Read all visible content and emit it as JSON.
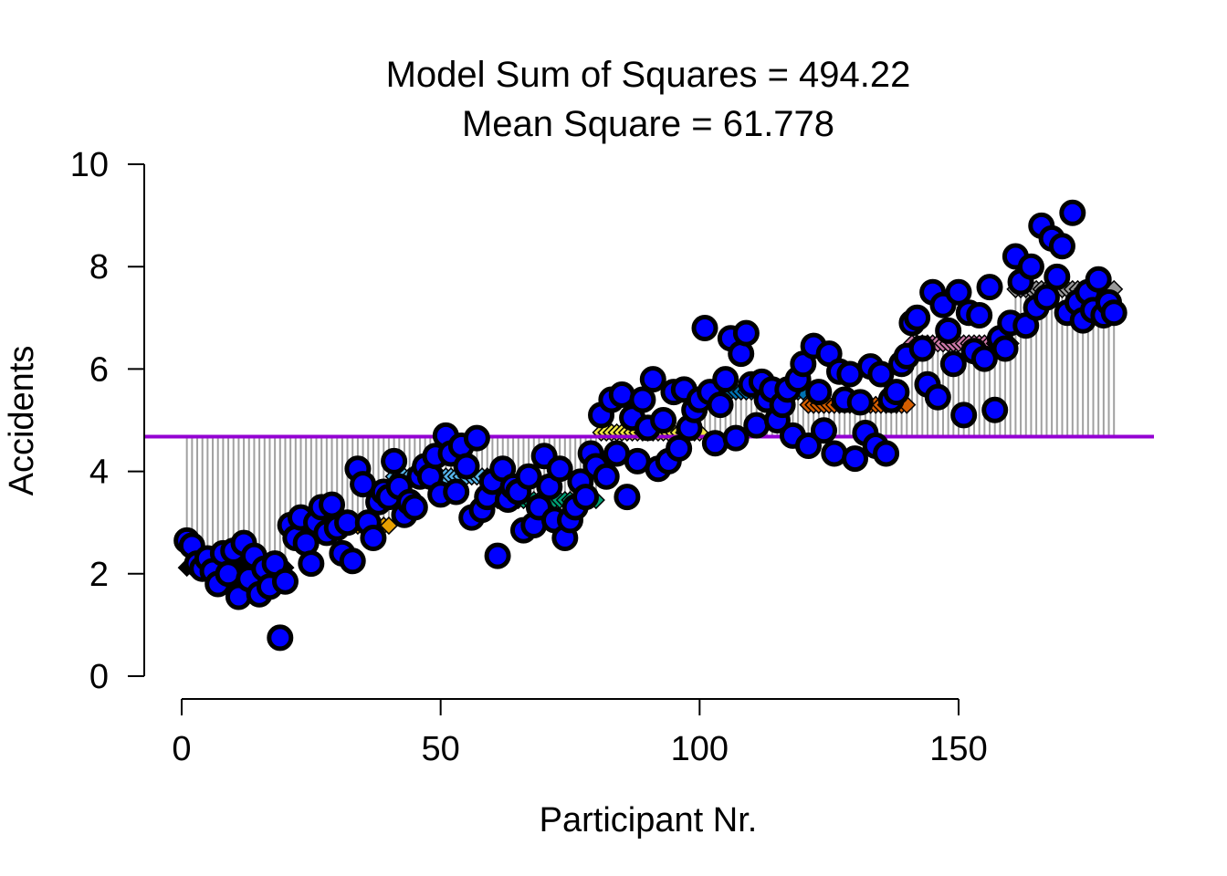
{
  "chart_data": {
    "type": "scatter",
    "title": "Model Sum of Squares = 494.22",
    "subtitle": "Mean Square = 61.778",
    "xlabel": "Participant Nr.",
    "ylabel": "Accidents",
    "xlim": [
      -7,
      188
    ],
    "ylim": [
      0,
      10
    ],
    "x_ticks": [
      0,
      50,
      100,
      150
    ],
    "y_ticks": [
      0,
      2,
      4,
      6,
      8,
      10
    ],
    "grid": false,
    "legend": "none",
    "grand_mean": 4.68,
    "colors": {
      "points_fill": "#0000ff",
      "points_edge": "#000000",
      "grand_mean_line": "#9400d3",
      "residual_lines": "#a0a0a0"
    },
    "groups": [
      {
        "x_start": 1,
        "x_end": 20,
        "mean": 2.12,
        "color": "#000000"
      },
      {
        "x_start": 21,
        "x_end": 40,
        "mean": 2.94,
        "color": "#e69f00"
      },
      {
        "x_start": 41,
        "x_end": 60,
        "mean": 3.9,
        "color": "#56b4e9"
      },
      {
        "x_start": 61,
        "x_end": 80,
        "mean": 3.44,
        "color": "#009e73"
      },
      {
        "x_start": 81,
        "x_end": 100,
        "mean": 4.76,
        "color": "#f0e442"
      },
      {
        "x_start": 101,
        "x_end": 120,
        "mean": 5.56,
        "color": "#0072b2"
      },
      {
        "x_start": 121,
        "x_end": 140,
        "mean": 5.3,
        "color": "#d55e00"
      },
      {
        "x_start": 141,
        "x_end": 160,
        "mean": 6.5,
        "color": "#cc79a7"
      },
      {
        "x_start": 161,
        "x_end": 180,
        "mean": 7.56,
        "color": "#999999"
      }
    ],
    "points": [
      [
        1,
        2.65
      ],
      [
        2,
        2.55
      ],
      [
        3,
        2.2
      ],
      [
        4,
        2.1
      ],
      [
        5,
        2.3
      ],
      [
        6,
        2.05
      ],
      [
        7,
        1.8
      ],
      [
        8,
        2.4
      ],
      [
        9,
        2.0
      ],
      [
        10,
        2.45
      ],
      [
        11,
        1.55
      ],
      [
        12,
        2.6
      ],
      [
        13,
        1.9
      ],
      [
        14,
        2.35
      ],
      [
        15,
        1.6
      ],
      [
        16,
        2.1
      ],
      [
        17,
        1.75
      ],
      [
        18,
        2.2
      ],
      [
        19,
        0.75
      ],
      [
        20,
        1.85
      ],
      [
        21,
        2.95
      ],
      [
        22,
        2.7
      ],
      [
        23,
        3.1
      ],
      [
        24,
        2.6
      ],
      [
        25,
        2.2
      ],
      [
        26,
        3.0
      ],
      [
        27,
        3.3
      ],
      [
        28,
        2.8
      ],
      [
        29,
        3.35
      ],
      [
        30,
        2.9
      ],
      [
        31,
        2.4
      ],
      [
        32,
        3.0
      ],
      [
        33,
        2.25
      ],
      [
        34,
        4.05
      ],
      [
        35,
        3.75
      ],
      [
        36,
        3.0
      ],
      [
        37,
        2.7
      ],
      [
        38,
        3.4
      ],
      [
        39,
        3.6
      ],
      [
        40,
        3.5
      ],
      [
        41,
        4.2
      ],
      [
        42,
        3.7
      ],
      [
        43,
        3.15
      ],
      [
        44,
        3.4
      ],
      [
        45,
        3.3
      ],
      [
        46,
        3.9
      ],
      [
        47,
        4.1
      ],
      [
        48,
        3.9
      ],
      [
        49,
        4.3
      ],
      [
        50,
        3.55
      ],
      [
        51,
        4.7
      ],
      [
        52,
        4.35
      ],
      [
        53,
        3.6
      ],
      [
        54,
        4.5
      ],
      [
        55,
        4.1
      ],
      [
        56,
        3.1
      ],
      [
        57,
        4.65
      ],
      [
        58,
        3.25
      ],
      [
        59,
        3.5
      ],
      [
        60,
        3.8
      ],
      [
        61,
        2.35
      ],
      [
        62,
        4.05
      ],
      [
        63,
        3.45
      ],
      [
        64,
        3.7
      ],
      [
        65,
        3.6
      ],
      [
        66,
        2.85
      ],
      [
        67,
        3.9
      ],
      [
        68,
        2.95
      ],
      [
        69,
        3.3
      ],
      [
        70,
        4.3
      ],
      [
        71,
        3.7
      ],
      [
        72,
        3.05
      ],
      [
        73,
        4.05
      ],
      [
        74,
        2.7
      ],
      [
        75,
        3.05
      ],
      [
        76,
        3.3
      ],
      [
        77,
        3.8
      ],
      [
        78,
        3.5
      ],
      [
        79,
        4.35
      ],
      [
        80,
        4.1
      ],
      [
        81,
        5.1
      ],
      [
        82,
        3.9
      ],
      [
        83,
        5.4
      ],
      [
        84,
        4.35
      ],
      [
        85,
        5.5
      ],
      [
        86,
        3.5
      ],
      [
        87,
        5.05
      ],
      [
        88,
        4.2
      ],
      [
        89,
        5.4
      ],
      [
        90,
        4.85
      ],
      [
        91,
        5.8
      ],
      [
        92,
        4.05
      ],
      [
        93,
        5.0
      ],
      [
        94,
        4.2
      ],
      [
        95,
        5.55
      ],
      [
        96,
        4.45
      ],
      [
        97,
        5.6
      ],
      [
        98,
        4.85
      ],
      [
        99,
        5.2
      ],
      [
        100,
        5.4
      ],
      [
        101,
        6.8
      ],
      [
        102,
        5.55
      ],
      [
        103,
        4.55
      ],
      [
        104,
        5.3
      ],
      [
        105,
        5.8
      ],
      [
        106,
        6.6
      ],
      [
        107,
        4.65
      ],
      [
        108,
        6.3
      ],
      [
        109,
        6.7
      ],
      [
        110,
        5.7
      ],
      [
        111,
        4.9
      ],
      [
        112,
        5.75
      ],
      [
        113,
        5.4
      ],
      [
        114,
        5.6
      ],
      [
        115,
        5.0
      ],
      [
        116,
        5.3
      ],
      [
        117,
        5.6
      ],
      [
        118,
        4.7
      ],
      [
        119,
        5.8
      ],
      [
        120,
        6.1
      ],
      [
        121,
        4.5
      ],
      [
        122,
        6.45
      ],
      [
        123,
        5.55
      ],
      [
        124,
        4.8
      ],
      [
        125,
        6.3
      ],
      [
        126,
        4.35
      ],
      [
        127,
        5.95
      ],
      [
        128,
        5.4
      ],
      [
        129,
        5.9
      ],
      [
        130,
        4.25
      ],
      [
        131,
        5.35
      ],
      [
        132,
        4.75
      ],
      [
        133,
        6.05
      ],
      [
        134,
        4.5
      ],
      [
        135,
        5.9
      ],
      [
        136,
        4.35
      ],
      [
        137,
        5.4
      ],
      [
        138,
        5.55
      ],
      [
        139,
        6.1
      ],
      [
        140,
        6.25
      ],
      [
        141,
        6.9
      ],
      [
        142,
        7.0
      ],
      [
        143,
        6.4
      ],
      [
        144,
        5.7
      ],
      [
        145,
        7.5
      ],
      [
        146,
        5.45
      ],
      [
        147,
        7.25
      ],
      [
        148,
        6.75
      ],
      [
        149,
        6.1
      ],
      [
        150,
        7.5
      ],
      [
        151,
        5.1
      ],
      [
        152,
        7.1
      ],
      [
        153,
        6.35
      ],
      [
        154,
        7.05
      ],
      [
        155,
        6.2
      ],
      [
        156,
        7.6
      ],
      [
        157,
        5.2
      ],
      [
        158,
        6.6
      ],
      [
        159,
        6.4
      ],
      [
        160,
        6.9
      ],
      [
        161,
        8.2
      ],
      [
        162,
        7.7
      ],
      [
        163,
        6.85
      ],
      [
        164,
        8.0
      ],
      [
        165,
        7.2
      ],
      [
        166,
        8.8
      ],
      [
        167,
        7.4
      ],
      [
        168,
        8.55
      ],
      [
        169,
        7.8
      ],
      [
        170,
        8.4
      ],
      [
        171,
        7.1
      ],
      [
        172,
        9.05
      ],
      [
        173,
        7.3
      ],
      [
        174,
        6.95
      ],
      [
        175,
        7.5
      ],
      [
        176,
        7.15
      ],
      [
        177,
        7.75
      ],
      [
        178,
        7.05
      ],
      [
        179,
        7.3
      ],
      [
        180,
        7.1
      ]
    ]
  }
}
